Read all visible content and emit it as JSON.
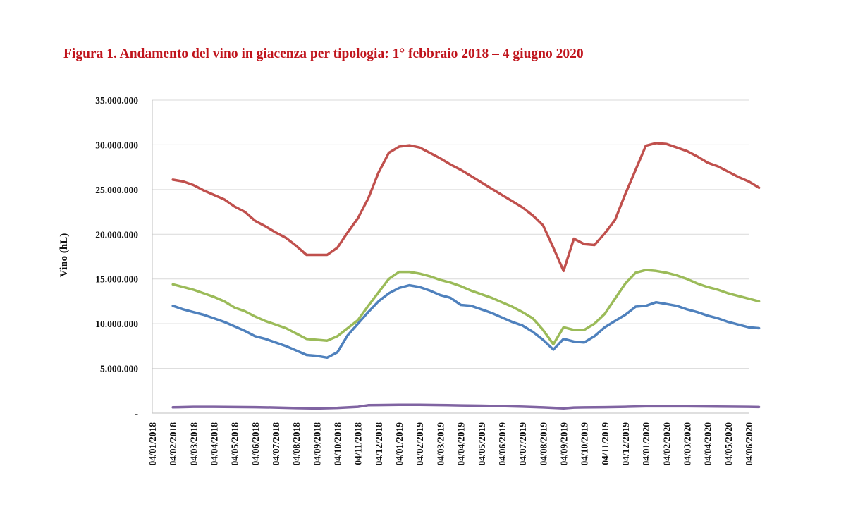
{
  "figure": {
    "title": "Figura 1. Andamento del vino in giacenza per tipologia: 1° febbraio 2018 – 4 giugno 2020"
  },
  "chart_data": {
    "type": "line",
    "ylabel": "Vino (hL)",
    "xlabel": "",
    "ylim": [
      0,
      35000000
    ],
    "yticks": [
      0,
      5000000,
      10000000,
      15000000,
      20000000,
      25000000,
      30000000,
      35000000
    ],
    "ytick_labels": [
      "-",
      "5.000.000",
      "10.000.000",
      "15.000.000",
      "20.000.000",
      "25.000.000",
      "30.000.000",
      "35.000.000"
    ],
    "grid": "horizontal",
    "x_tick_labels": [
      "04/01/2018",
      "04/02/2018",
      "04/03/2018",
      "04/04/2018",
      "04/05/2018",
      "04/06/2018",
      "04/07/2018",
      "04/08/2018",
      "04/09/2018",
      "04/10/2018",
      "04/11/2018",
      "04/12/2018",
      "04/01/2019",
      "04/02/2019",
      "04/03/2019",
      "04/04/2019",
      "04/05/2019",
      "04/06/2019",
      "04/07/2019",
      "04/08/2019",
      "04/09/2019",
      "04/10/2019",
      "04/11/2019",
      "04/12/2019",
      "04/01/2020",
      "04/02/2020",
      "04/03/2020",
      "04/04/2020",
      "04/05/2020",
      "04/06/2020"
    ],
    "series": [
      {
        "color": "#c0504d",
        "points": [
          [
            1,
            26100000
          ],
          [
            1.5,
            25900000
          ],
          [
            2,
            25500000
          ],
          [
            2.5,
            24900000
          ],
          [
            3,
            24400000
          ],
          [
            3.5,
            23900000
          ],
          [
            4,
            23100000
          ],
          [
            4.5,
            22500000
          ],
          [
            5,
            21500000
          ],
          [
            5.5,
            20900000
          ],
          [
            6,
            20200000
          ],
          [
            6.5,
            19600000
          ],
          [
            7,
            18700000
          ],
          [
            7.5,
            17700000
          ],
          [
            8,
            17700000
          ],
          [
            8.5,
            17700000
          ],
          [
            9,
            18500000
          ],
          [
            9.5,
            20200000
          ],
          [
            10,
            21800000
          ],
          [
            10.5,
            24000000
          ],
          [
            11,
            26900000
          ],
          [
            11.5,
            29100000
          ],
          [
            12,
            29800000
          ],
          [
            12.5,
            29950000
          ],
          [
            13,
            29700000
          ],
          [
            13.5,
            29100000
          ],
          [
            14,
            28500000
          ],
          [
            14.5,
            27800000
          ],
          [
            15,
            27200000
          ],
          [
            15.5,
            26500000
          ],
          [
            16,
            25800000
          ],
          [
            16.5,
            25100000
          ],
          [
            17,
            24400000
          ],
          [
            17.5,
            23700000
          ],
          [
            18,
            23000000
          ],
          [
            18.5,
            22100000
          ],
          [
            19,
            21000000
          ],
          [
            19.5,
            18500000
          ],
          [
            20,
            15900000
          ],
          [
            20.5,
            19500000
          ],
          [
            21,
            18900000
          ],
          [
            21.5,
            18800000
          ],
          [
            22,
            20100000
          ],
          [
            22.5,
            21600000
          ],
          [
            23,
            24500000
          ],
          [
            23.5,
            27200000
          ],
          [
            24,
            29900000
          ],
          [
            24.5,
            30200000
          ],
          [
            25,
            30100000
          ],
          [
            25.5,
            29700000
          ],
          [
            26,
            29300000
          ],
          [
            26.5,
            28700000
          ],
          [
            27,
            28000000
          ],
          [
            27.5,
            27600000
          ],
          [
            28,
            27000000
          ],
          [
            28.5,
            26400000
          ],
          [
            29,
            25900000
          ],
          [
            29.5,
            25200000
          ]
        ]
      },
      {
        "color": "#9bbb59",
        "points": [
          [
            1,
            14400000
          ],
          [
            1.5,
            14100000
          ],
          [
            2,
            13800000
          ],
          [
            2.5,
            13400000
          ],
          [
            3,
            13000000
          ],
          [
            3.5,
            12500000
          ],
          [
            4,
            11800000
          ],
          [
            4.5,
            11400000
          ],
          [
            5,
            10800000
          ],
          [
            5.5,
            10300000
          ],
          [
            6,
            9900000
          ],
          [
            6.5,
            9500000
          ],
          [
            7,
            8900000
          ],
          [
            7.5,
            8300000
          ],
          [
            8,
            8200000
          ],
          [
            8.5,
            8100000
          ],
          [
            9,
            8600000
          ],
          [
            9.5,
            9500000
          ],
          [
            10,
            10400000
          ],
          [
            10.5,
            12000000
          ],
          [
            11,
            13500000
          ],
          [
            11.5,
            15000000
          ],
          [
            12,
            15800000
          ],
          [
            12.5,
            15800000
          ],
          [
            13,
            15600000
          ],
          [
            13.5,
            15300000
          ],
          [
            14,
            14900000
          ],
          [
            14.5,
            14600000
          ],
          [
            15,
            14200000
          ],
          [
            15.5,
            13700000
          ],
          [
            16,
            13300000
          ],
          [
            16.5,
            12900000
          ],
          [
            17,
            12400000
          ],
          [
            17.5,
            11900000
          ],
          [
            18,
            11300000
          ],
          [
            18.5,
            10600000
          ],
          [
            19,
            9300000
          ],
          [
            19.5,
            7700000
          ],
          [
            20,
            9600000
          ],
          [
            20.5,
            9300000
          ],
          [
            21,
            9300000
          ],
          [
            21.5,
            10000000
          ],
          [
            22,
            11100000
          ],
          [
            22.5,
            12800000
          ],
          [
            23,
            14500000
          ],
          [
            23.5,
            15700000
          ],
          [
            24,
            16000000
          ],
          [
            24.5,
            15900000
          ],
          [
            25,
            15700000
          ],
          [
            25.5,
            15400000
          ],
          [
            26,
            15000000
          ],
          [
            26.5,
            14500000
          ],
          [
            27,
            14100000
          ],
          [
            27.5,
            13800000
          ],
          [
            28,
            13400000
          ],
          [
            28.5,
            13100000
          ],
          [
            29,
            12800000
          ],
          [
            29.5,
            12500000
          ]
        ]
      },
      {
        "color": "#4f81bd",
        "points": [
          [
            1,
            12000000
          ],
          [
            1.5,
            11600000
          ],
          [
            2,
            11300000
          ],
          [
            2.5,
            11000000
          ],
          [
            3,
            10600000
          ],
          [
            3.5,
            10200000
          ],
          [
            4,
            9700000
          ],
          [
            4.5,
            9200000
          ],
          [
            5,
            8600000
          ],
          [
            5.5,
            8300000
          ],
          [
            6,
            7900000
          ],
          [
            6.5,
            7500000
          ],
          [
            7,
            7000000
          ],
          [
            7.5,
            6500000
          ],
          [
            8,
            6400000
          ],
          [
            8.5,
            6200000
          ],
          [
            9,
            6800000
          ],
          [
            9.5,
            8700000
          ],
          [
            10,
            10000000
          ],
          [
            10.5,
            11300000
          ],
          [
            11,
            12500000
          ],
          [
            11.5,
            13400000
          ],
          [
            12,
            14000000
          ],
          [
            12.5,
            14300000
          ],
          [
            13,
            14100000
          ],
          [
            13.5,
            13700000
          ],
          [
            14,
            13200000
          ],
          [
            14.5,
            12900000
          ],
          [
            15,
            12100000
          ],
          [
            15.5,
            12000000
          ],
          [
            16,
            11600000
          ],
          [
            16.5,
            11200000
          ],
          [
            17,
            10700000
          ],
          [
            17.5,
            10200000
          ],
          [
            18,
            9800000
          ],
          [
            18.5,
            9100000
          ],
          [
            19,
            8200000
          ],
          [
            19.5,
            7100000
          ],
          [
            20,
            8300000
          ],
          [
            20.5,
            8000000
          ],
          [
            21,
            7900000
          ],
          [
            21.5,
            8600000
          ],
          [
            22,
            9600000
          ],
          [
            22.5,
            10300000
          ],
          [
            23,
            11000000
          ],
          [
            23.5,
            11900000
          ],
          [
            24,
            12000000
          ],
          [
            24.5,
            12400000
          ],
          [
            25,
            12200000
          ],
          [
            25.5,
            12000000
          ],
          [
            26,
            11600000
          ],
          [
            26.5,
            11300000
          ],
          [
            27,
            10900000
          ],
          [
            27.5,
            10600000
          ],
          [
            28,
            10200000
          ],
          [
            28.5,
            9900000
          ],
          [
            29,
            9600000
          ],
          [
            29.5,
            9500000
          ]
        ]
      },
      {
        "color": "#8064a2",
        "points": [
          [
            1,
            650000
          ],
          [
            2,
            700000
          ],
          [
            3,
            700000
          ],
          [
            4,
            680000
          ],
          [
            5,
            660000
          ],
          [
            6,
            620000
          ],
          [
            7,
            560000
          ],
          [
            8,
            520000
          ],
          [
            9,
            580000
          ],
          [
            10,
            700000
          ],
          [
            10.5,
            880000
          ],
          [
            11,
            900000
          ],
          [
            12,
            930000
          ],
          [
            13,
            920000
          ],
          [
            14,
            900000
          ],
          [
            15,
            860000
          ],
          [
            16,
            830000
          ],
          [
            17,
            780000
          ],
          [
            18,
            720000
          ],
          [
            19,
            640000
          ],
          [
            20,
            530000
          ],
          [
            20.5,
            620000
          ],
          [
            21,
            640000
          ],
          [
            22,
            660000
          ],
          [
            23,
            700000
          ],
          [
            24,
            760000
          ],
          [
            25,
            760000
          ],
          [
            26,
            760000
          ],
          [
            27,
            740000
          ],
          [
            28,
            720000
          ],
          [
            29,
            700000
          ],
          [
            29.5,
            680000
          ]
        ]
      }
    ]
  }
}
